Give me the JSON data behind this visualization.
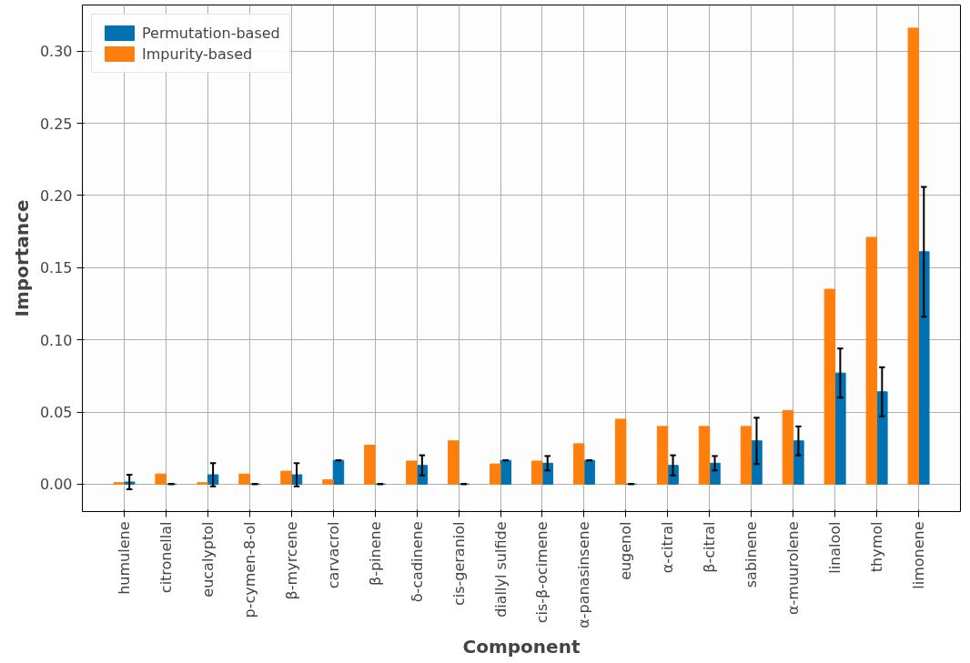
{
  "chart_data": {
    "type": "bar",
    "xlabel": "Component",
    "ylabel": "Importance",
    "categories": [
      "humulene",
      "citronellal",
      "eucalyptol",
      "p-cymen-8-ol",
      "β-myrcene",
      "carvacrol",
      "β-pinene",
      "δ-cadinene",
      "cis-geraniol",
      "diallyl sulfide",
      "cis-β-ocimene",
      "α-panasinsene",
      "eugenol",
      "α-citral",
      "β-citral",
      "sabinene",
      "α-muurolene",
      "linalool",
      "thymol",
      "limonene"
    ],
    "series": [
      {
        "name": "Permutation-based",
        "color": "#0072b2",
        "values": [
          0.0015,
          0,
          0.0065,
          0,
          0.0065,
          0.0165,
          0,
          0.013,
          0,
          0.0165,
          0.0145,
          0.0165,
          0,
          0.013,
          0.0145,
          0.03,
          0.03,
          0.077,
          0.064,
          0.161
        ],
        "errors": [
          0.005,
          0,
          0.008,
          0,
          0.008,
          0,
          0,
          0.007,
          0,
          0,
          0.005,
          0,
          0,
          0.007,
          0.005,
          0.016,
          0.01,
          0.017,
          0.017,
          0.045
        ]
      },
      {
        "name": "Impurity-based",
        "color": "#ff7f0e",
        "values": [
          0.001,
          0.007,
          0.001,
          0.007,
          0.009,
          0.003,
          0.027,
          0.016,
          0.03,
          0.014,
          0.016,
          0.028,
          0.045,
          0.04,
          0.04,
          0.04,
          0.051,
          0.135,
          0.171,
          0.316
        ]
      }
    ],
    "ylim": [
      -0.019,
      0.332
    ],
    "yticks": [
      {
        "value": 0,
        "label": "0.00"
      },
      {
        "value": 0.05,
        "label": "0.05"
      },
      {
        "value": 0.1,
        "label": "0.10"
      },
      {
        "value": 0.15,
        "label": "0.15"
      },
      {
        "value": 0.2,
        "label": "0.20"
      },
      {
        "value": 0.25,
        "label": "0.25"
      },
      {
        "value": 0.3,
        "label": "0.30"
      }
    ],
    "grid": true,
    "legend": "top left"
  }
}
